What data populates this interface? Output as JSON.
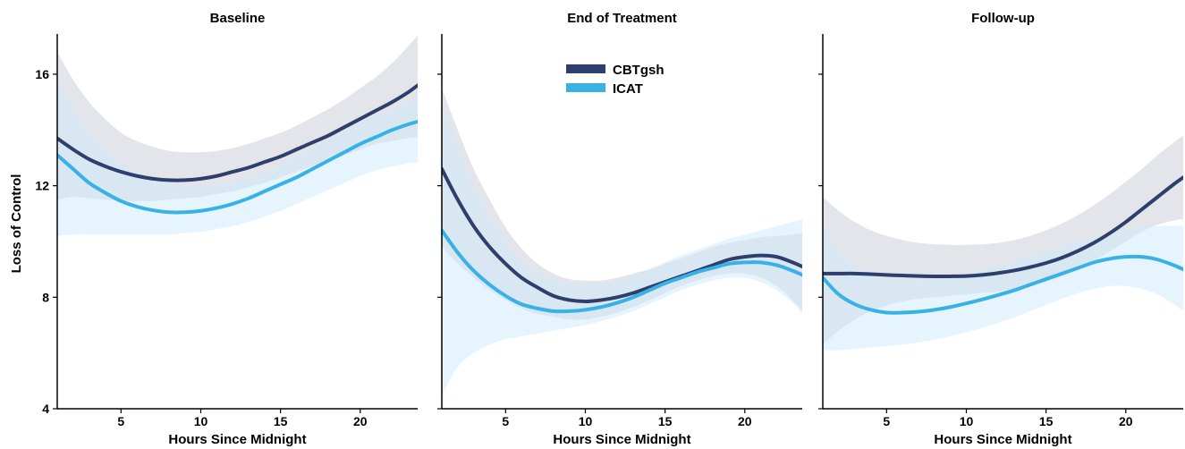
{
  "chart_data": {
    "type": "line",
    "ylabel": "Loss of Control",
    "xlabel": "Hours Since Midnight",
    "ylim": [
      4,
      17.7
    ],
    "yticks": [
      4,
      8,
      12,
      16
    ],
    "xlim": [
      1,
      23.6
    ],
    "xticks": [
      5,
      10,
      15,
      20
    ],
    "legend": {
      "placement": "top-center",
      "entries": [
        "CBTgsh",
        "ICAT"
      ]
    },
    "colors": {
      "CBTgsh": "#2f3f6d",
      "ICAT": "#38b2e6",
      "CBTgsh_band": "#c9ccd8",
      "ICAT_band": "#cde9fb"
    },
    "panels": [
      {
        "title": "Baseline",
        "x": [
          1,
          2,
          3,
          4,
          5,
          6,
          7,
          8,
          9,
          10,
          11,
          12,
          13,
          14,
          15,
          16,
          17,
          18,
          19,
          20,
          21,
          22,
          23,
          23.6
        ],
        "series": [
          {
            "name": "CBTgsh",
            "values": [
              13.7,
              13.3,
              12.95,
              12.7,
              12.5,
              12.35,
              12.25,
              12.2,
              12.2,
              12.25,
              12.35,
              12.5,
              12.65,
              12.85,
              13.05,
              13.3,
              13.55,
              13.8,
              14.1,
              14.4,
              14.7,
              15.0,
              15.35,
              15.6
            ],
            "lower": [
              11.5,
              11.6,
              11.55,
              11.5,
              11.45,
              11.45,
              11.45,
              11.5,
              11.55,
              11.6,
              11.7,
              11.8,
              11.95,
              12.1,
              12.3,
              12.5,
              12.7,
              12.9,
              13.1,
              13.3,
              13.5,
              13.6,
              13.7,
              13.75
            ],
            "upper": [
              16.8,
              15.8,
              15.0,
              14.4,
              13.9,
              13.6,
              13.4,
              13.25,
              13.2,
              13.2,
              13.25,
              13.35,
              13.5,
              13.7,
              13.9,
              14.15,
              14.45,
              14.75,
              15.1,
              15.5,
              15.9,
              16.4,
              17.0,
              17.4
            ]
          },
          {
            "name": "ICAT",
            "values": [
              13.1,
              12.6,
              12.1,
              11.75,
              11.45,
              11.25,
              11.12,
              11.05,
              11.05,
              11.1,
              11.2,
              11.35,
              11.55,
              11.8,
              12.05,
              12.3,
              12.6,
              12.9,
              13.2,
              13.5,
              13.75,
              14.0,
              14.2,
              14.3
            ],
            "lower": [
              10.2,
              10.25,
              10.25,
              10.25,
              10.25,
              10.25,
              10.25,
              10.25,
              10.3,
              10.35,
              10.45,
              10.55,
              10.7,
              10.9,
              11.1,
              11.35,
              11.6,
              11.85,
              12.1,
              12.35,
              12.55,
              12.7,
              12.8,
              12.85
            ],
            "upper": [
              15.8,
              14.8,
              13.9,
              13.3,
              12.85,
              12.5,
              12.25,
              12.1,
              12.0,
              12.0,
              12.05,
              12.15,
              12.3,
              12.5,
              12.75,
              13.05,
              13.35,
              13.65,
              13.95,
              14.25,
              14.5,
              14.75,
              15.0,
              15.2
            ]
          }
        ]
      },
      {
        "title": "End of Treatment",
        "x": [
          1,
          2,
          3,
          4,
          5,
          6,
          7,
          8,
          9,
          10,
          11,
          12,
          13,
          14,
          15,
          16,
          17,
          18,
          19,
          20,
          21,
          22,
          23,
          23.6
        ],
        "series": [
          {
            "name": "CBTgsh",
            "values": [
              12.6,
              11.5,
              10.55,
              9.8,
              9.2,
              8.7,
              8.35,
              8.05,
              7.9,
              7.85,
              7.9,
              8.0,
              8.15,
              8.35,
              8.55,
              8.75,
              8.95,
              9.15,
              9.35,
              9.45,
              9.5,
              9.45,
              9.25,
              9.1
            ],
            "lower": [
              9.8,
              9.2,
              8.7,
              8.25,
              7.9,
              7.6,
              7.4,
              7.3,
              7.2,
              7.2,
              7.3,
              7.45,
              7.65,
              7.9,
              8.15,
              8.4,
              8.6,
              8.75,
              8.85,
              8.85,
              8.7,
              8.4,
              7.9,
              7.5
            ],
            "upper": [
              15.5,
              14.0,
              12.6,
              11.5,
              10.5,
              9.75,
              9.2,
              8.85,
              8.65,
              8.6,
              8.6,
              8.7,
              8.85,
              9.0,
              9.2,
              9.4,
              9.6,
              9.8,
              9.95,
              10.05,
              10.15,
              10.2,
              10.25,
              10.3
            ]
          },
          {
            "name": "ICAT",
            "values": [
              10.4,
              9.6,
              8.95,
              8.45,
              8.05,
              7.75,
              7.6,
              7.5,
              7.5,
              7.55,
              7.65,
              7.8,
              8.0,
              8.25,
              8.5,
              8.7,
              8.9,
              9.05,
              9.2,
              9.25,
              9.25,
              9.15,
              8.95,
              8.8
            ],
            "lower": [
              4.5,
              5.5,
              6.0,
              6.3,
              6.5,
              6.6,
              6.7,
              6.8,
              6.9,
              7.0,
              7.15,
              7.3,
              7.5,
              7.75,
              8.0,
              8.25,
              8.45,
              8.6,
              8.7,
              8.7,
              8.55,
              8.25,
              7.8,
              7.4
            ],
            "upper": [
              15.0,
              13.5,
              12.0,
              10.9,
              10.0,
              9.3,
              8.9,
              8.65,
              8.5,
              8.45,
              8.5,
              8.6,
              8.8,
              9.0,
              9.25,
              9.5,
              9.7,
              9.9,
              10.1,
              10.25,
              10.4,
              10.55,
              10.7,
              10.8
            ]
          }
        ]
      },
      {
        "title": "Follow-up",
        "x": [
          1,
          2,
          3,
          4,
          5,
          6,
          7,
          8,
          9,
          10,
          11,
          12,
          13,
          14,
          15,
          16,
          17,
          18,
          19,
          20,
          21,
          22,
          23,
          23.6
        ],
        "series": [
          {
            "name": "CBTgsh",
            "values": [
              8.85,
              8.85,
              8.85,
              8.83,
              8.8,
              8.78,
              8.76,
              8.75,
              8.75,
              8.76,
              8.8,
              8.87,
              8.96,
              9.08,
              9.23,
              9.42,
              9.66,
              9.95,
              10.3,
              10.7,
              11.15,
              11.6,
              12.05,
              12.3
            ],
            "lower": [
              6.3,
              6.8,
              7.2,
              7.5,
              7.7,
              7.85,
              7.95,
              8.0,
              8.05,
              8.1,
              8.15,
              8.2,
              8.3,
              8.4,
              8.55,
              8.75,
              9.0,
              9.3,
              9.65,
              10.0,
              10.35,
              10.6,
              10.75,
              10.8
            ],
            "upper": [
              11.6,
              11.1,
              10.7,
              10.4,
              10.2,
              10.05,
              9.95,
              9.9,
              9.88,
              9.88,
              9.9,
              9.95,
              10.05,
              10.2,
              10.4,
              10.65,
              10.95,
              11.3,
              11.7,
              12.15,
              12.6,
              13.1,
              13.55,
              13.8
            ]
          },
          {
            "name": "ICAT",
            "values": [
              8.7,
              8.1,
              7.75,
              7.55,
              7.45,
              7.45,
              7.48,
              7.55,
              7.65,
              7.78,
              7.92,
              8.08,
              8.25,
              8.45,
              8.65,
              8.85,
              9.05,
              9.25,
              9.38,
              9.45,
              9.45,
              9.35,
              9.15,
              9.0
            ],
            "lower": [
              6.1,
              6.1,
              6.15,
              6.2,
              6.25,
              6.3,
              6.38,
              6.48,
              6.6,
              6.75,
              6.9,
              7.08,
              7.28,
              7.5,
              7.72,
              7.95,
              8.15,
              8.3,
              8.4,
              8.4,
              8.3,
              8.1,
              7.75,
              7.5
            ],
            "upper": [
              10.6,
              9.7,
              9.15,
              8.85,
              8.7,
              8.62,
              8.6,
              8.62,
              8.7,
              8.82,
              8.98,
              9.15,
              9.32,
              9.5,
              9.68,
              9.85,
              10.0,
              10.15,
              10.3,
              10.42,
              10.52,
              10.55,
              10.55,
              10.55
            ]
          }
        ]
      }
    ]
  }
}
